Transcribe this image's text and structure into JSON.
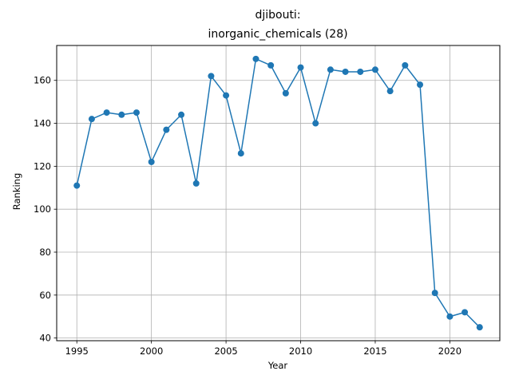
{
  "chart_data": {
    "type": "line",
    "title_line1": "djibouti:",
    "title_line2": "inorganic_chemicals (28)",
    "xlabel": "Year",
    "ylabel": "Ranking",
    "xlim": [
      1993.65,
      2023.35
    ],
    "ylim": [
      38.75,
      176.25
    ],
    "xticks": [
      1995,
      2000,
      2005,
      2010,
      2015,
      2020
    ],
    "yticks": [
      40,
      60,
      80,
      100,
      120,
      140,
      160
    ],
    "grid": true,
    "legend": "none",
    "series": [
      {
        "color": "#1f77b4",
        "marker": "circle",
        "x": [
          1995,
          1996,
          1997,
          1998,
          1999,
          2000,
          2001,
          2002,
          2003,
          2004,
          2005,
          2006,
          2007,
          2008,
          2009,
          2010,
          2011,
          2012,
          2013,
          2014,
          2015,
          2016,
          2017,
          2018,
          2019,
          2020,
          2021,
          2022
        ],
        "y": [
          111,
          142,
          145,
          144,
          145,
          122,
          137,
          144,
          112,
          162,
          153,
          126,
          170,
          167,
          154,
          166,
          140,
          165,
          164,
          164,
          165,
          155,
          167,
          158,
          61,
          50,
          52,
          45
        ]
      }
    ]
  }
}
